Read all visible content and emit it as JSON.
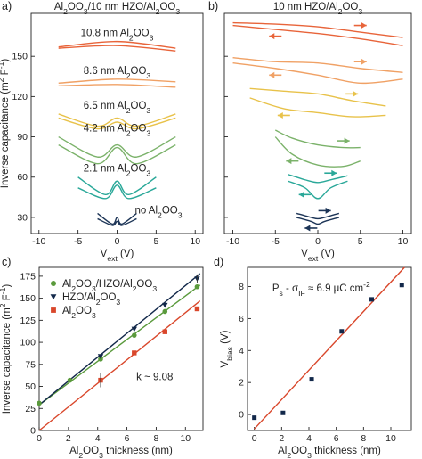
{
  "colors": {
    "c10": "#e8643a",
    "c8": "#f0a165",
    "c6": "#e8c24a",
    "c4": "#7bb26a",
    "c2": "#2aa899",
    "c0": "#1d3557",
    "green": "#5a9a3c",
    "navy": "#12284a",
    "red": "#d9472b",
    "fit": "#d9472b"
  },
  "chart_data": [
    {
      "panel": "a)",
      "type": "line",
      "title": "Al2O3/10 nm HZO/Al2O3",
      "xlabel": "Vext (V)",
      "ylabel": "Inverse capacitance (m2 F-1)",
      "xlim": [
        -11,
        11
      ],
      "ylim": [
        18,
        182
      ],
      "xticks": [
        -10,
        -5,
        0,
        5,
        10
      ],
      "yticks": [
        30,
        60,
        90,
        120,
        150
      ],
      "series": [
        {
          "name": "10.8 nm Al2O3",
          "color": "c10",
          "x": [
            -7.5,
            0,
            7.5
          ],
          "y_upper": [
            157,
            161,
            156
          ],
          "y_lower": [
            156,
            158,
            154
          ]
        },
        {
          "name": "8.6 nm Al2O3",
          "color": "c8",
          "x": [
            -7.5,
            0,
            7.5
          ],
          "y_upper": [
            130,
            133,
            131
          ],
          "y_lower": [
            128,
            129,
            127
          ]
        },
        {
          "name": "6.5 nm Al2O3",
          "color": "c6",
          "x": [
            -7.5,
            -2.5,
            0,
            2.5,
            7.5
          ],
          "y_upper": [
            107,
            98,
            104,
            98,
            107
          ],
          "y_lower": [
            104,
            96,
            101,
            96,
            104
          ]
        },
        {
          "name": "4.2 nm Al2O3",
          "color": "c4",
          "x": [
            -7.5,
            -2.5,
            0,
            2.5,
            7.5
          ],
          "y_upper": [
            90,
            75,
            84,
            75,
            90
          ],
          "y_lower": [
            84,
            70,
            82,
            70,
            84
          ]
        },
        {
          "name": "2.1 nm Al2O3",
          "color": "c2",
          "x": [
            -5,
            -1.5,
            0,
            1.5,
            5
          ],
          "y_upper": [
            60,
            47,
            57,
            47,
            60
          ],
          "y_lower": [
            52,
            44,
            54,
            44,
            52
          ]
        },
        {
          "name": "no Al2O3",
          "color": "c0",
          "x": [
            -2.5,
            -0.6,
            0,
            0.6,
            2.5
          ],
          "y_upper": [
            33,
            25,
            30,
            25,
            33
          ],
          "y_lower": [
            29,
            24,
            27,
            24,
            29
          ]
        }
      ]
    },
    {
      "panel": "b)",
      "type": "line",
      "title": "10 nm HZO/Al2O3",
      "xlabel": "Vext (V)",
      "xlim": [
        -11,
        11
      ],
      "ylim": [
        18,
        182
      ],
      "xticks": [
        -10,
        -5,
        0,
        5,
        10
      ],
      "yticks": [
        30,
        60,
        90,
        120,
        150
      ],
      "series": [
        {
          "color": "c10",
          "x": [
            -10,
            -5,
            0,
            5,
            10
          ],
          "y_upper": [
            175,
            174,
            172,
            168,
            164
          ],
          "y_lower": [
            173,
            170,
            167,
            163,
            158
          ]
        },
        {
          "color": "c8",
          "x": [
            -10,
            -5,
            0,
            5,
            10
          ],
          "y_upper": [
            149,
            146,
            145,
            141,
            138
          ],
          "y_lower": [
            145,
            141,
            136,
            130,
            133
          ]
        },
        {
          "color": "c6",
          "x": [
            -8,
            -4,
            0,
            4,
            8
          ],
          "y_upper": [
            126,
            124,
            122,
            117,
            113
          ],
          "y_lower": [
            119,
            111,
            108,
            105,
            106
          ]
        },
        {
          "color": "c4",
          "x": [
            -5,
            -3,
            0,
            3,
            5
          ],
          "y_upper": [
            95,
            89,
            84,
            82,
            82
          ],
          "y_lower": [
            90,
            77,
            69,
            68,
            72
          ]
        },
        {
          "color": "c2",
          "x": [
            -3.5,
            -1.5,
            0,
            1.5,
            3.5
          ],
          "y_upper": [
            62,
            58,
            56,
            58,
            61
          ],
          "y_lower": [
            57,
            52,
            44,
            52,
            57
          ]
        },
        {
          "color": "c0",
          "x": [
            -2.5,
            -0.8,
            0,
            0.8,
            2.5
          ],
          "y_upper": [
            33,
            30,
            29,
            30,
            33
          ],
          "y_lower": [
            30,
            27,
            25,
            27,
            30
          ]
        }
      ]
    },
    {
      "panel": "c)",
      "type": "scatter",
      "xlabel": "Al2O3 thickness (nm)",
      "ylabel": "Inverse capacitance (m2 F-1)",
      "xlim": [
        0,
        11.2
      ],
      "ylim": [
        0,
        185
      ],
      "xticks": [
        0,
        2,
        4,
        6,
        8,
        10
      ],
      "yticks": [
        0,
        25,
        50,
        75,
        100,
        125,
        150,
        175
      ],
      "annotation": "k ~ 9.08",
      "series": [
        {
          "name": "Al2O3/HZO/Al2O3",
          "marker": "circle",
          "color": "green",
          "x": [
            0,
            2.1,
            4.2,
            6.5,
            8.6,
            10.8
          ],
          "y": [
            31,
            57,
            81,
            108,
            135,
            163
          ]
        },
        {
          "name": "HZO/Al2O3",
          "marker": "triangle",
          "color": "navy",
          "x": [
            4.2,
            6.5,
            8.6,
            10.8
          ],
          "y": [
            84,
            115,
            142,
            172
          ]
        },
        {
          "name": "Al2O3",
          "marker": "square",
          "color": "red",
          "x": [
            4.2,
            6.5,
            8.6,
            10.8
          ],
          "y": [
            57,
            88,
            112,
            138
          ]
        }
      ],
      "fits": [
        {
          "color": "green",
          "x": [
            0,
            11
          ],
          "y": [
            29,
            165
          ]
        },
        {
          "color": "navy",
          "x": [
            0,
            11
          ],
          "y": [
            29,
            178
          ]
        },
        {
          "color": "fit",
          "x": [
            0,
            11
          ],
          "y": [
            0,
            147
          ]
        }
      ]
    },
    {
      "panel": "d)",
      "type": "scatter",
      "xlabel": "Al2O3 thickness (nm)",
      "ylabel": "Vbias (V)",
      "xlim": [
        -0.5,
        11.5
      ],
      "ylim": [
        -1,
        9.2
      ],
      "xticks": [
        0,
        2,
        4,
        6,
        8,
        10
      ],
      "yticks": [
        0,
        2,
        4,
        6,
        8
      ],
      "annotation": "Ps - σIF ≈ 6.9 μC cm-2",
      "points": {
        "x": [
          0,
          2.1,
          4.2,
          6.4,
          8.6,
          10.8
        ],
        "y": [
          -0.2,
          0.1,
          2.2,
          5.2,
          7.2,
          8.1
        ]
      },
      "fit": {
        "x": [
          0,
          11
        ],
        "y": [
          -0.9,
          9.2
        ]
      }
    }
  ]
}
